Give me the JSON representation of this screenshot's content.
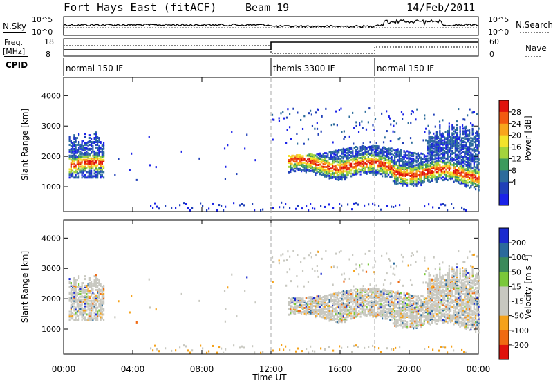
{
  "header": {
    "title": "Fort Hays East (fitACF)",
    "beam": "Beam 19",
    "date": "14/Feb/2011"
  },
  "panel_labels": {
    "nsky": "N.Sky",
    "nsearch": "N.Search",
    "nsky_top": "10^5",
    "nsky_bottom": "10^0",
    "freq_title": "Freq.",
    "freq_unit": "[MHz]",
    "freq_top": "18",
    "freq_bottom": "8",
    "nave": "Nave",
    "nave_top": "60",
    "nave_bottom": "0",
    "cpid": "CPID"
  },
  "cpid_segments": [
    {
      "label": "normal 150 IF",
      "start_hour": 0
    },
    {
      "label": "themis 3300 IF",
      "start_hour": 12
    },
    {
      "label": "normal 150 IF",
      "start_hour": 18
    }
  ],
  "chart_data": [
    {
      "type": "heatmap",
      "name": "power",
      "ylabel": "Slant Range [km]",
      "xlabel": "",
      "xlim_hours": [
        0,
        24
      ],
      "ylim": [
        180,
        4600
      ],
      "yticks": [
        1000,
        2000,
        3000,
        4000
      ],
      "colorbar": {
        "label": "Power [dB]",
        "ticks": [
          "28",
          "24",
          "20",
          "16",
          "12",
          "8",
          "4"
        ],
        "colors": [
          "#e0120c",
          "#f25a10",
          "#f8a51c",
          "#f3e32a",
          "#a3d43c",
          "#3c9a5c",
          "#2c6c9c",
          "#2040b8",
          "#1a22e8"
        ]
      },
      "bands": [
        {
          "x": [
            0.3,
            2.3
          ],
          "y": [
            1650,
            1950
          ]
        },
        {
          "x": [
            13.0,
            24.0
          ],
          "y": [
            1200,
            1900
          ]
        },
        {
          "x": [
            5.0,
            24.0
          ],
          "y": [
            200,
            400
          ]
        }
      ]
    },
    {
      "type": "heatmap",
      "name": "velocity",
      "ylabel": "Slant Range [km]",
      "xlabel": "Time UT",
      "xlim_hours": [
        0,
        24
      ],
      "ylim": [
        180,
        4600
      ],
      "yticks": [
        1000,
        2000,
        3000,
        4000
      ],
      "colorbar": {
        "label": "Velocity [m s⁻¹]",
        "ticks": [
          "200",
          "100",
          "50",
          "15",
          "-15",
          "-50",
          "-100",
          "-200"
        ],
        "colors": [
          "#1a2ad0",
          "#2a6a9c",
          "#3a8a5a",
          "#7ac83a",
          "#c8c8c0",
          "#c8c8c0",
          "#f5a21a",
          "#f06a12",
          "#e0120c"
        ]
      },
      "xticks": [
        "00:00",
        "04:00",
        "08:00",
        "12:00",
        "16:00",
        "20:00",
        "00:00"
      ]
    }
  ]
}
